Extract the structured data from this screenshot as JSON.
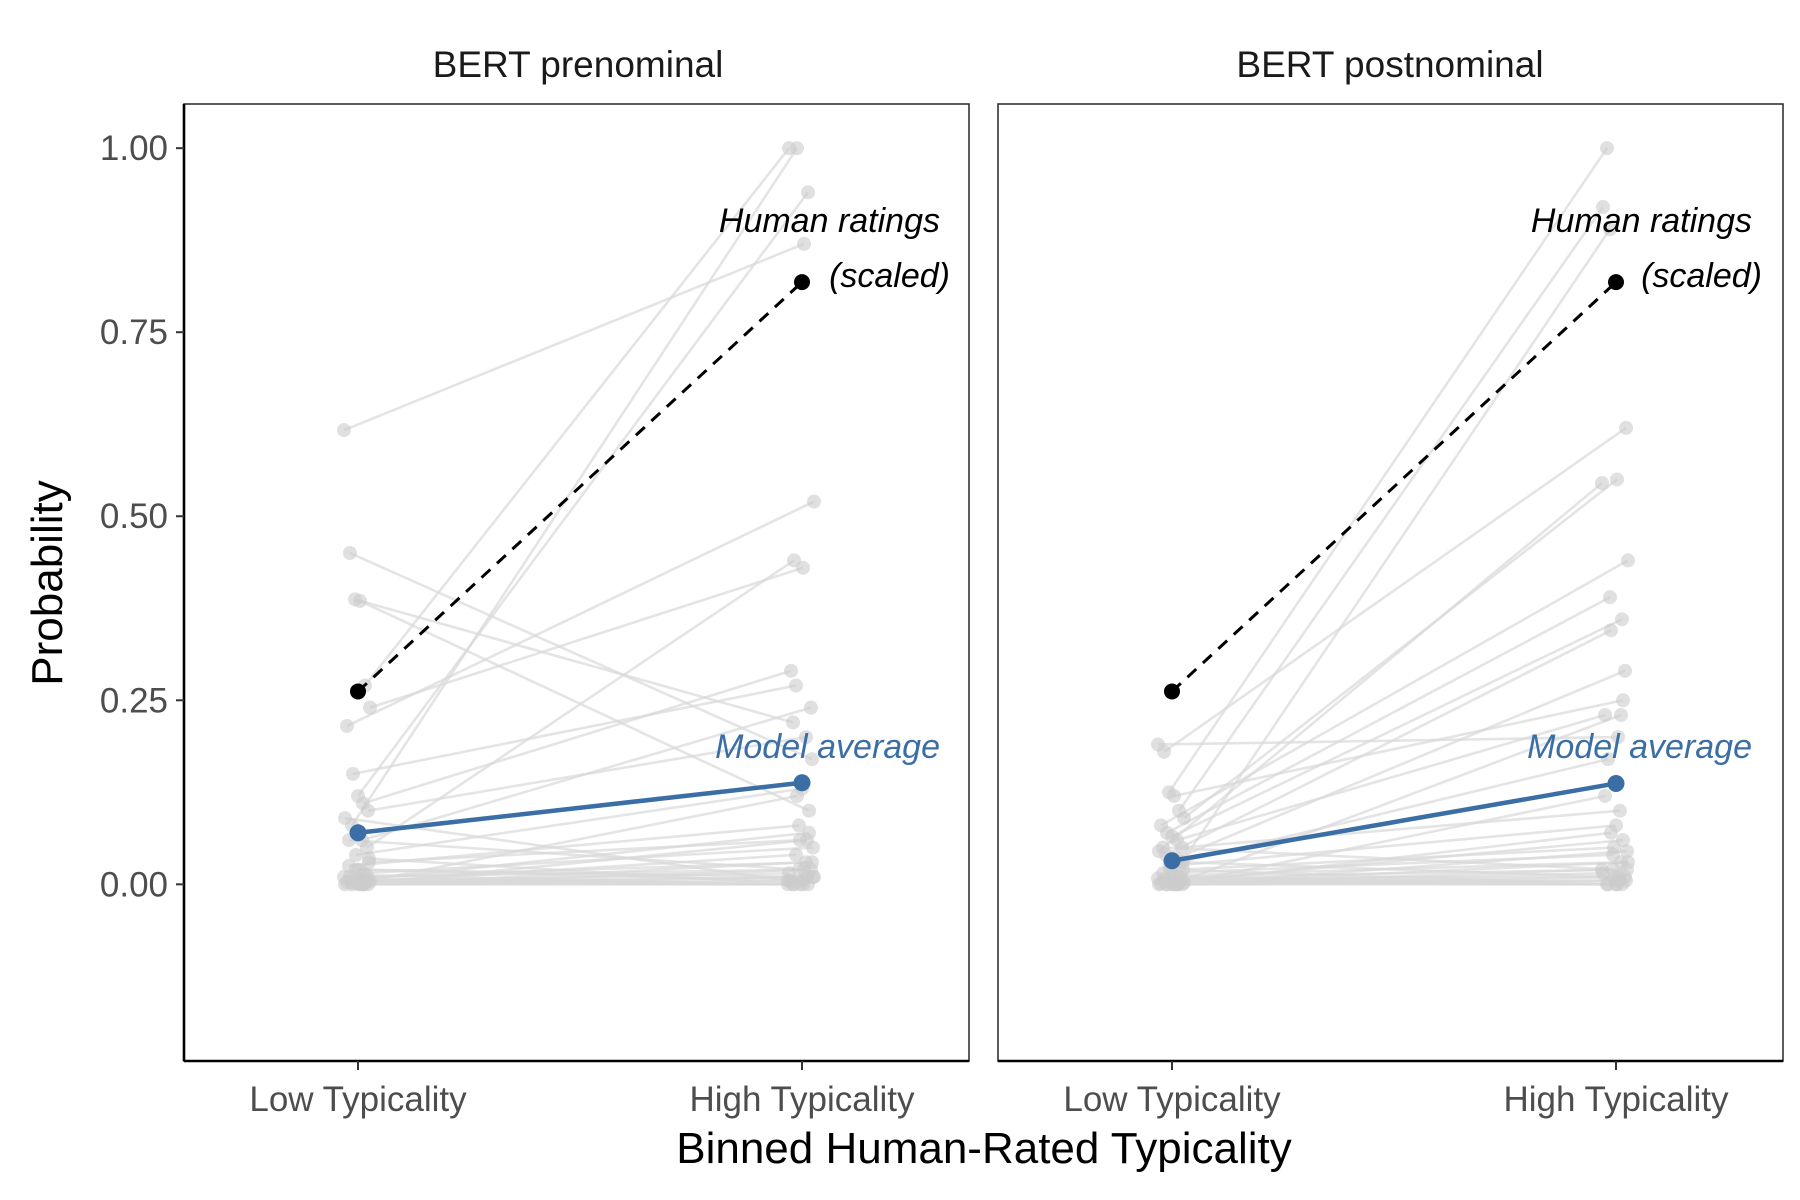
{
  "chart_data": {
    "type": "line",
    "ylabel": "Probability",
    "xlabel": "Binned Human-Rated Typicality",
    "categories": [
      "Low Typicality",
      "High Typicality"
    ],
    "ylim": [
      -0.24,
      1.06
    ],
    "y_ticks": [
      "0.00",
      "0.25",
      "0.50",
      "0.75",
      "1.00"
    ],
    "y_tick_values": [
      0,
      0.25,
      0.5,
      0.75,
      1.0
    ],
    "grid": false,
    "colors": {
      "background_lines": "#d9d9d9",
      "model_average": "#3b6ea5",
      "human": "#000000"
    },
    "panels": [
      {
        "title": "BERT prenominal",
        "human_label_line1": "Human ratings",
        "human_label_line2": "(scaled)",
        "model_label": "Model average",
        "series": [
          {
            "name": "Human ratings (scaled)",
            "values": [
              0.262,
              0.818
            ]
          },
          {
            "name": "Model average",
            "values": [
              0.07,
              0.138
            ]
          }
        ],
        "items": [
          [
            0.617,
            0.87
          ],
          [
            0.45,
            0.17
          ],
          [
            0.387,
            0.22
          ],
          [
            0.385,
            0.1
          ],
          [
            0.27,
            1.0
          ],
          [
            0.24,
            0.43
          ],
          [
            0.215,
            0.52
          ],
          [
            0.15,
            0.27
          ],
          [
            0.12,
            0.94
          ],
          [
            0.11,
            0.29
          ],
          [
            0.1,
            0.2
          ],
          [
            0.09,
            0.005
          ],
          [
            0.08,
            1.0
          ],
          [
            0.06,
            0.24
          ],
          [
            0.05,
            0.44
          ],
          [
            0.04,
            0.13
          ],
          [
            0.03,
            0.06
          ],
          [
            0.025,
            0.08
          ],
          [
            0.02,
            0.01
          ],
          [
            0.015,
            0.05
          ],
          [
            0.01,
            0.02
          ],
          [
            0.01,
            0.03
          ],
          [
            0.008,
            0.0
          ],
          [
            0.006,
            0.07
          ],
          [
            0.005,
            0.015
          ],
          [
            0.004,
            0.0
          ],
          [
            0.003,
            0.01
          ],
          [
            0.002,
            0.04
          ],
          [
            0.001,
            0.0
          ],
          [
            0.0,
            0.005
          ],
          [
            0.0,
            0.03
          ],
          [
            0.0,
            0.0
          ],
          [
            0.0,
            0.12
          ],
          [
            0.0,
            0.02
          ],
          [
            0.012,
            0.0
          ],
          [
            0.02,
            0.005
          ],
          [
            0.035,
            0.0
          ],
          [
            0.06,
            0.02
          ],
          [
            0.0,
            0.06
          ],
          [
            0.0,
            0.01
          ]
        ]
      },
      {
        "title": "BERT postnominal",
        "human_label_line1": "Human ratings",
        "human_label_line2": "(scaled)",
        "model_label": "Model average",
        "series": [
          {
            "name": "Human ratings (scaled)",
            "values": [
              0.262,
              0.818
            ]
          },
          {
            "name": "Model average",
            "values": [
              0.032,
              0.137
            ]
          }
        ],
        "items": [
          [
            0.19,
            0.2
          ],
          [
            0.18,
            0.62
          ],
          [
            0.125,
            1.0
          ],
          [
            0.12,
            0.25
          ],
          [
            0.1,
            0.92
          ],
          [
            0.09,
            0.55
          ],
          [
            0.08,
            0.44
          ],
          [
            0.07,
            0.39
          ],
          [
            0.065,
            0.36
          ],
          [
            0.06,
            0.23
          ],
          [
            0.05,
            0.1
          ],
          [
            0.045,
            0.545
          ],
          [
            0.04,
            0.345
          ],
          [
            0.035,
            0.29
          ],
          [
            0.03,
            0.17
          ],
          [
            0.025,
            0.08
          ],
          [
            0.02,
            0.05
          ],
          [
            0.015,
            0.04
          ],
          [
            0.012,
            0.03
          ],
          [
            0.01,
            0.02
          ],
          [
            0.008,
            0.01
          ],
          [
            0.006,
            0.005
          ],
          [
            0.005,
            0.0
          ],
          [
            0.004,
            0.06
          ],
          [
            0.003,
            0.015
          ],
          [
            0.002,
            0.0
          ],
          [
            0.001,
            0.03
          ],
          [
            0.0,
            0.89
          ],
          [
            0.0,
            0.0
          ],
          [
            0.0,
            0.12
          ],
          [
            0.0,
            0.005
          ],
          [
            0.0,
            0.02
          ],
          [
            0.0,
            0.07
          ],
          [
            0.0,
            0.01
          ],
          [
            0.01,
            0.0
          ],
          [
            0.02,
            0.0
          ],
          [
            0.03,
            0.01
          ],
          [
            0.05,
            0.02
          ],
          [
            0.0,
            0.23
          ],
          [
            0.0,
            0.045
          ]
        ]
      }
    ]
  }
}
